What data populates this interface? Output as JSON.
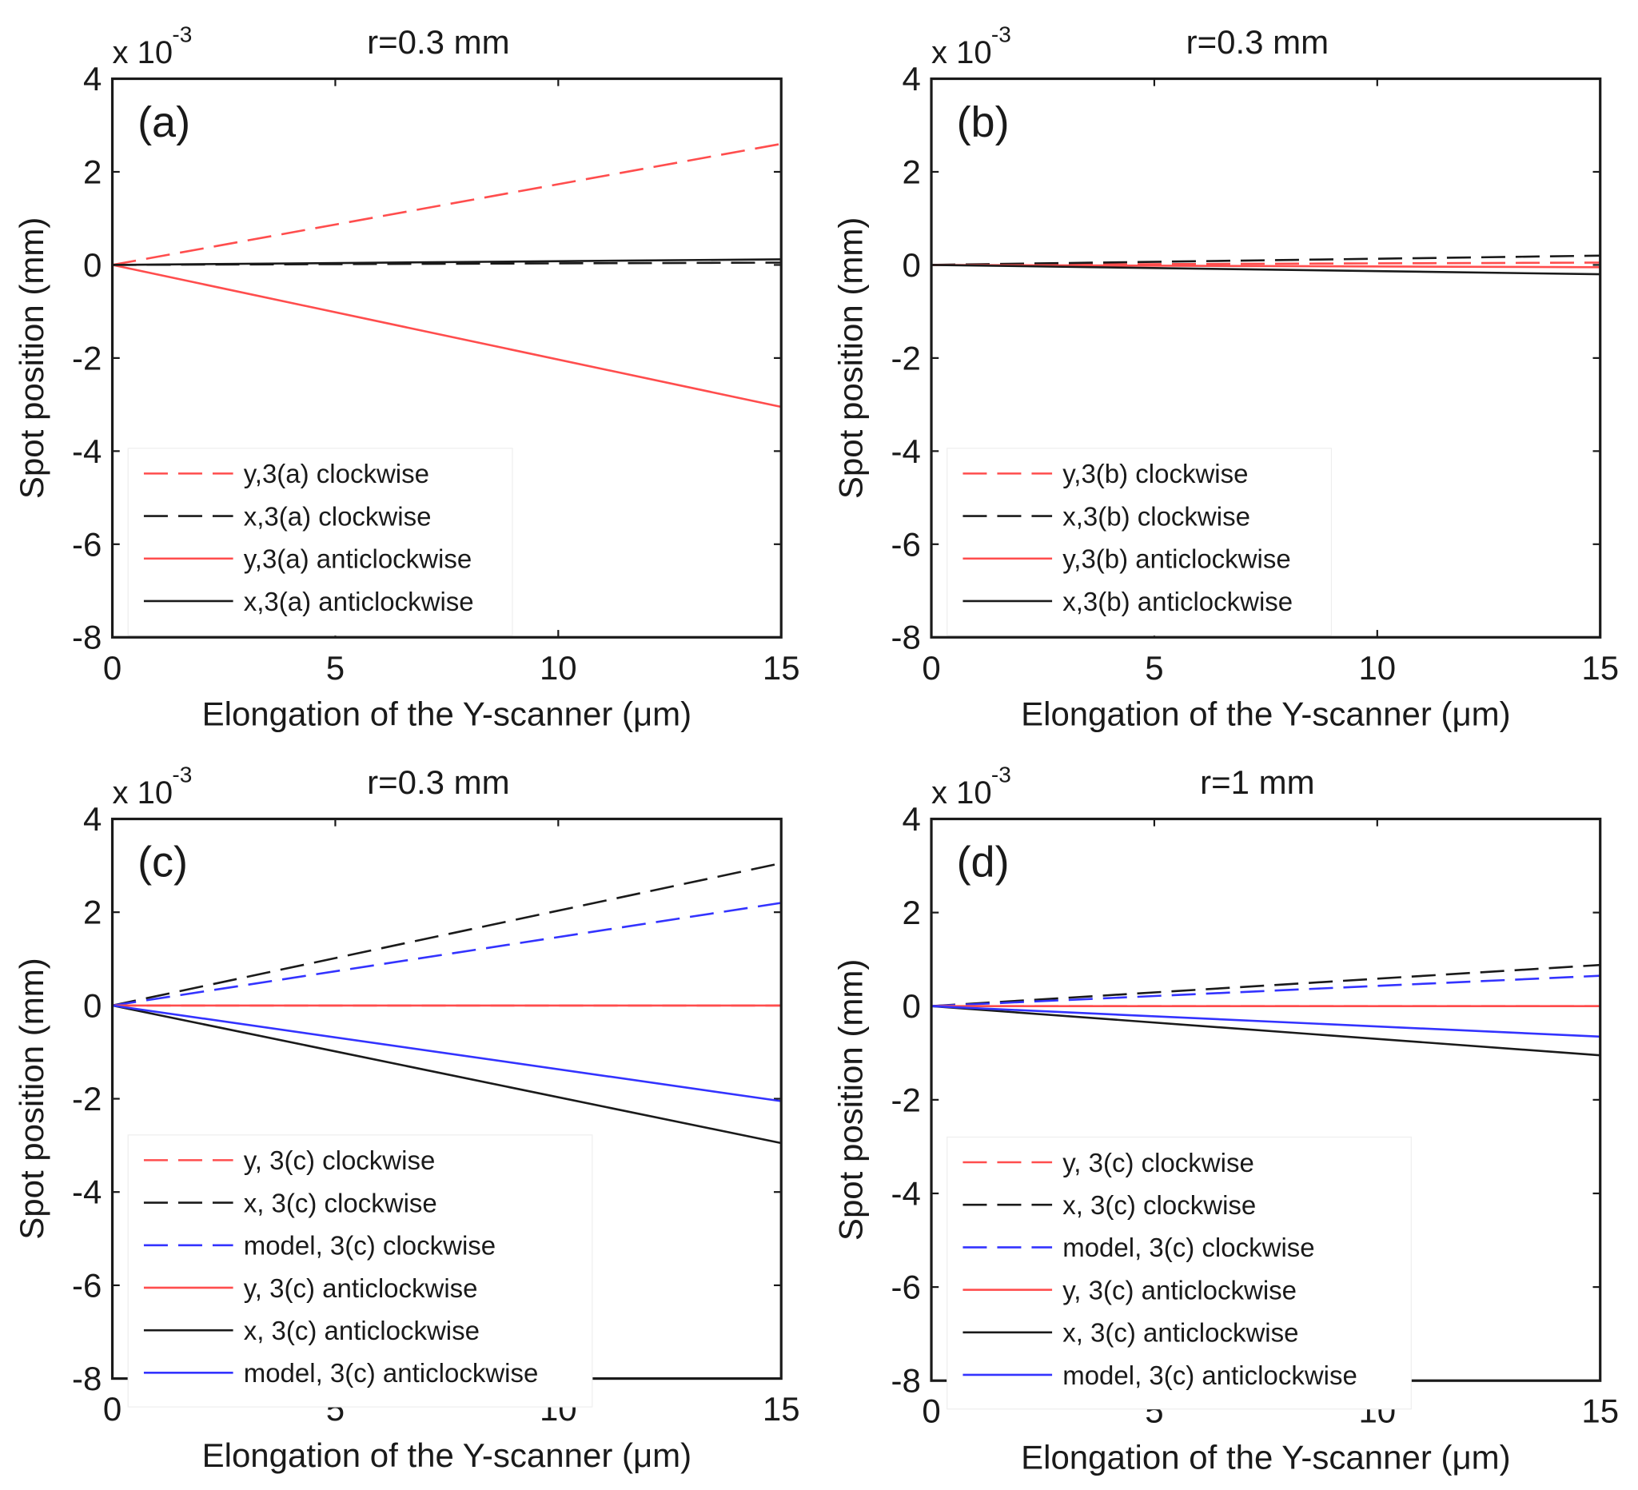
{
  "chart_data": [
    {
      "type": "line",
      "panel_label": "(a)",
      "title": "r=0.3 mm",
      "xlabel": "Elongation of the Y-scanner (μm)",
      "ylabel": "Spot position (mm)",
      "y_scale_base": "x 10",
      "y_scale_exp": "-3",
      "xlim": [
        0,
        15
      ],
      "ylim": [
        -8,
        4
      ],
      "xticks": [
        "0",
        "5",
        "10",
        "15"
      ],
      "yticks": [
        "4",
        "2",
        "0",
        "-2",
        "-4",
        "-6",
        "-8"
      ],
      "legend_position": "bottom-left",
      "series": [
        {
          "name": "y,3(a) clockwise",
          "color": "#ff4d4d",
          "dash": "dashed",
          "x": [
            0,
            15
          ],
          "y": [
            0,
            2.6
          ]
        },
        {
          "name": "x,3(a) clockwise",
          "color": "#1a1a1a",
          "dash": "dashed",
          "x": [
            0,
            15
          ],
          "y": [
            0,
            0.05
          ]
        },
        {
          "name": "y,3(a) anticlockwise",
          "color": "#ff4d4d",
          "dash": "solid",
          "x": [
            0,
            15
          ],
          "y": [
            0,
            -3.05
          ]
        },
        {
          "name": "x,3(a) anticlockwise",
          "color": "#1a1a1a",
          "dash": "solid",
          "x": [
            0,
            15
          ],
          "y": [
            0,
            0.12
          ]
        }
      ]
    },
    {
      "type": "line",
      "panel_label": "(b)",
      "title": "r=0.3 mm",
      "xlabel": "Elongation of the Y-scanner (μm)",
      "ylabel": "Spot position (mm)",
      "y_scale_base": "x 10",
      "y_scale_exp": "-3",
      "xlim": [
        0,
        15
      ],
      "ylim": [
        -8,
        4
      ],
      "xticks": [
        "0",
        "5",
        "10",
        "15"
      ],
      "yticks": [
        "4",
        "2",
        "0",
        "-2",
        "-4",
        "-6",
        "-8"
      ],
      "legend_position": "bottom-left",
      "series": [
        {
          "name": "y,3(b) clockwise",
          "color": "#ff4d4d",
          "dash": "dashed",
          "x": [
            0,
            15
          ],
          "y": [
            0,
            0.05
          ]
        },
        {
          "name": "x,3(b) clockwise",
          "color": "#1a1a1a",
          "dash": "dashed",
          "x": [
            0,
            15
          ],
          "y": [
            0,
            0.2
          ]
        },
        {
          "name": "y,3(b) anticlockwise",
          "color": "#ff4d4d",
          "dash": "solid",
          "x": [
            0,
            15
          ],
          "y": [
            0,
            -0.05
          ]
        },
        {
          "name": "x,3(b) anticlockwise",
          "color": "#1a1a1a",
          "dash": "solid",
          "x": [
            0,
            15
          ],
          "y": [
            0,
            -0.2
          ]
        }
      ]
    },
    {
      "type": "line",
      "panel_label": "(c)",
      "title": "r=0.3 mm",
      "xlabel": "Elongation of the Y-scanner (μm)",
      "ylabel": "Spot position (mm)",
      "y_scale_base": "x 10",
      "y_scale_exp": "-3",
      "xlim": [
        0,
        15
      ],
      "ylim": [
        -8,
        4
      ],
      "xticks": [
        "0",
        "5",
        "10",
        "15"
      ],
      "yticks": [
        "4",
        "2",
        "0",
        "-2",
        "-4",
        "-6",
        "-8"
      ],
      "legend_position": "bottom-left",
      "series": [
        {
          "name": "y, 3(c) clockwise",
          "color": "#ff4d4d",
          "dash": "dashed",
          "x": [
            0,
            15
          ],
          "y": [
            0,
            0
          ]
        },
        {
          "name": "x, 3(c) clockwise",
          "color": "#1a1a1a",
          "dash": "dashed",
          "x": [
            0,
            15
          ],
          "y": [
            0,
            3.05
          ]
        },
        {
          "name": "model, 3(c) clockwise",
          "color": "#3333ff",
          "dash": "dashed",
          "x": [
            0,
            15
          ],
          "y": [
            0,
            2.2
          ]
        },
        {
          "name": "y, 3(c) anticlockwise",
          "color": "#ff4d4d",
          "dash": "solid",
          "x": [
            0,
            15
          ],
          "y": [
            0,
            0
          ]
        },
        {
          "name": "x, 3(c) anticlockwise",
          "color": "#1a1a1a",
          "dash": "solid",
          "x": [
            0,
            15
          ],
          "y": [
            0,
            -2.95
          ]
        },
        {
          "name": "model, 3(c) anticlockwise",
          "color": "#3333ff",
          "dash": "solid",
          "x": [
            0,
            15
          ],
          "y": [
            0,
            -2.05
          ]
        }
      ]
    },
    {
      "type": "line",
      "panel_label": "(d)",
      "title": "r=1 mm",
      "xlabel": "Elongation of the Y-scanner (μm)",
      "ylabel": "Spot position (mm)",
      "y_scale_base": "x 10",
      "y_scale_exp": "-3",
      "xlim": [
        0,
        15
      ],
      "ylim": [
        -8,
        4
      ],
      "xticks": [
        "0",
        "5",
        "10",
        "15"
      ],
      "yticks": [
        "4",
        "2",
        "0",
        "-2",
        "-4",
        "-6",
        "-8"
      ],
      "legend_position": "bottom-left",
      "series": [
        {
          "name": "y, 3(c) clockwise",
          "color": "#ff4d4d",
          "dash": "dashed",
          "x": [
            0,
            15
          ],
          "y": [
            0,
            0
          ]
        },
        {
          "name": "x, 3(c) clockwise",
          "color": "#1a1a1a",
          "dash": "dashed",
          "x": [
            0,
            15
          ],
          "y": [
            0,
            0.88
          ]
        },
        {
          "name": "model, 3(c) clockwise",
          "color": "#3333ff",
          "dash": "dashed",
          "x": [
            0,
            15
          ],
          "y": [
            0,
            0.65
          ]
        },
        {
          "name": "y, 3(c) anticlockwise",
          "color": "#ff4d4d",
          "dash": "solid",
          "x": [
            0,
            15
          ],
          "y": [
            0,
            0
          ]
        },
        {
          "name": "x, 3(c) anticlockwise",
          "color": "#1a1a1a",
          "dash": "solid",
          "x": [
            0,
            15
          ],
          "y": [
            0,
            -1.05
          ]
        },
        {
          "name": "model, 3(c) anticlockwise",
          "color": "#3333ff",
          "dash": "solid",
          "x": [
            0,
            15
          ],
          "y": [
            0,
            -0.65
          ]
        }
      ]
    }
  ]
}
